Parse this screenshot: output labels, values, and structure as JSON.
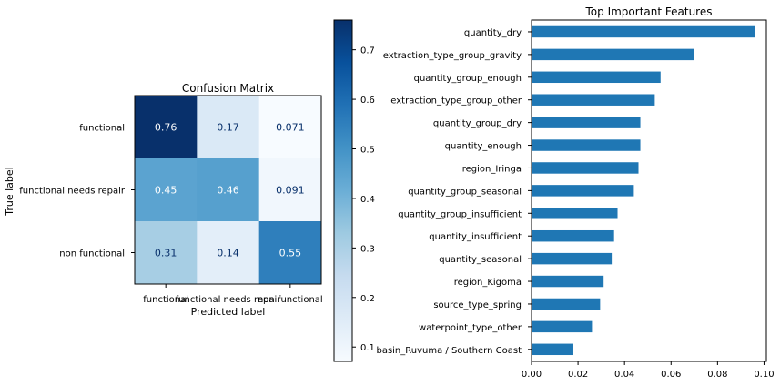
{
  "chart_data": [
    {
      "type": "heatmap",
      "title": "Confusion Matrix",
      "xlabel": "Predicted label",
      "ylabel": "True label",
      "x_categories": [
        "functional",
        "functional needs repair",
        "non functional"
      ],
      "y_categories": [
        "functional",
        "functional needs repair",
        "non functional"
      ],
      "values": [
        [
          0.76,
          0.17,
          0.071
        ],
        [
          0.45,
          0.46,
          0.091
        ],
        [
          0.31,
          0.14,
          0.55
        ]
      ],
      "labels": [
        [
          "0.76",
          "0.17",
          "0.071"
        ],
        [
          "0.45",
          "0.46",
          "0.091"
        ],
        [
          "0.31",
          "0.14",
          "0.55"
        ]
      ],
      "colormap": "Blues",
      "colorbar": {
        "vmin": 0.071,
        "vmax": 0.76,
        "ticks": [
          0.1,
          0.2,
          0.3,
          0.4,
          0.5,
          0.6,
          0.7
        ],
        "tick_labels": [
          "0.1",
          "0.2",
          "0.3",
          "0.4",
          "0.5",
          "0.6",
          "0.7"
        ]
      },
      "colors": {
        "low": "#f7fbff",
        "mid": "#6baed6",
        "high": "#08306b",
        "text_light": "#ffffff",
        "text_dark": "#08306b"
      }
    },
    {
      "type": "bar",
      "orientation": "horizontal",
      "title": "Top Important Features",
      "xlabel": "",
      "ylabel": "",
      "categories": [
        "quantity_dry",
        "extraction_type_group_gravity",
        "quantity_group_enough",
        "extraction_type_group_other",
        "quantity_group_dry",
        "quantity_enough",
        "region_Iringa",
        "quantity_group_seasonal",
        "quantity_group_insufficient",
        "quantity_insufficient",
        "quantity_seasonal",
        "region_Kigoma",
        "source_type_spring",
        "waterpoint_type_other",
        "basin_Ruvuma / Southern Coast"
      ],
      "values": [
        0.096,
        0.07,
        0.0555,
        0.053,
        0.0468,
        0.0468,
        0.046,
        0.044,
        0.037,
        0.0355,
        0.0345,
        0.031,
        0.0295,
        0.026,
        0.018
      ],
      "xlim": [
        0,
        0.101
      ],
      "xticks": [
        0.0,
        0.02,
        0.04,
        0.06,
        0.08,
        0.1
      ],
      "xtick_labels": [
        "0.00",
        "0.02",
        "0.04",
        "0.06",
        "0.08",
        "0.10"
      ],
      "grid": false,
      "colors": {
        "bar": "#1f77b4"
      }
    }
  ]
}
